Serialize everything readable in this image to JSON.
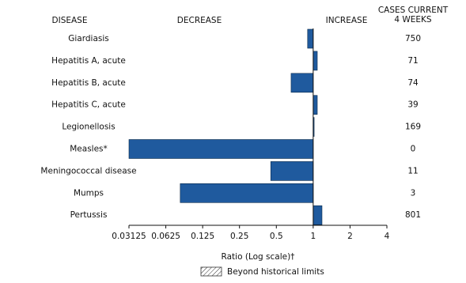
{
  "chart_data": {
    "type": "bar",
    "orientation": "horizontal",
    "log_scale": true,
    "base": 2,
    "headers": {
      "category": "DISEASE",
      "decrease": "DECREASE",
      "increase": "INCREASE",
      "cases": [
        "CASES CURRENT",
        "4 WEEKS"
      ]
    },
    "categories": [
      "Giardiasis",
      "Hepatitis A, acute",
      "Hepatitis B, acute",
      "Hepatitis C, acute",
      "Legionellosis",
      "Measles*",
      "Meningococcal disease",
      "Mumps",
      "Pertussis"
    ],
    "values": [
      0.9,
      1.08,
      0.66,
      1.08,
      1.01,
      0.03125,
      0.45,
      0.082,
      1.18
    ],
    "cases": [
      750,
      71,
      74,
      39,
      169,
      0,
      11,
      3,
      801
    ],
    "color": "#1f5a9e",
    "xlim": [
      0.03125,
      4
    ],
    "xticks": [
      0.03125,
      0.0625,
      0.125,
      0.25,
      0.5,
      1,
      2,
      4
    ],
    "reference": 1,
    "xlabel": "Ratio (Log scale)†",
    "legend": "Beyond historical limits"
  }
}
